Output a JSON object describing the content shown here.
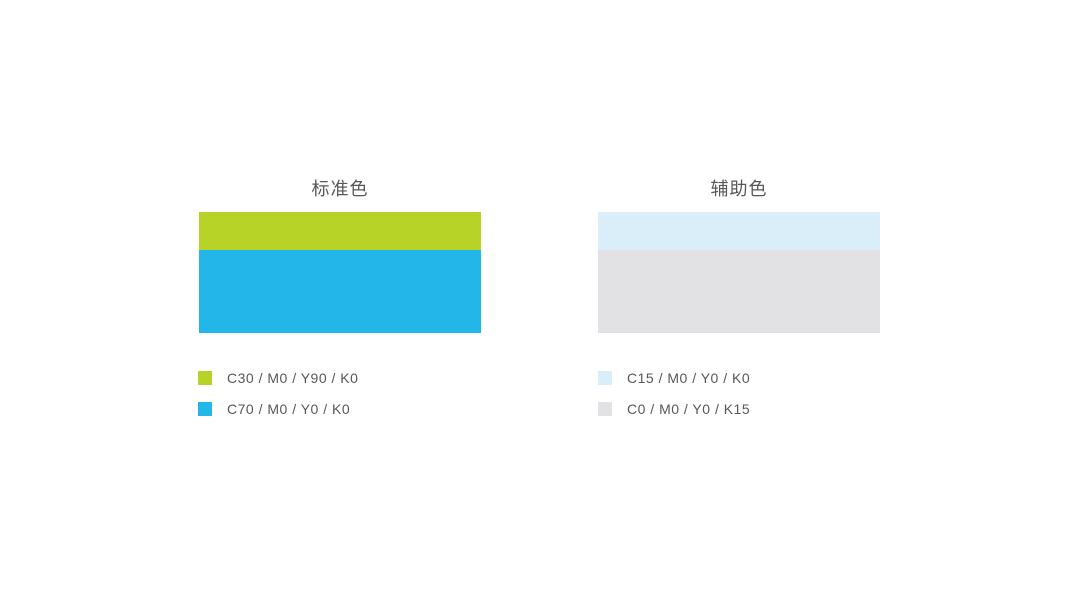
{
  "page": {
    "background": "#ffffff",
    "text_color": "#595757"
  },
  "palettes": [
    {
      "title": "标准色",
      "colors": [
        {
          "name": "brand-green",
          "hex": "#b7d327",
          "cmyk": "C30 / M0 / Y90 / K0"
        },
        {
          "name": "brand-blue",
          "hex": "#22b6e9",
          "cmyk": "C70 / M0 / Y0 / K0"
        }
      ]
    },
    {
      "title": "辅助色",
      "colors": [
        {
          "name": "light-blue",
          "hex": "#daeefa",
          "cmyk": "C15 / M0 / Y0 / K0"
        },
        {
          "name": "light-gray",
          "hex": "#e2e2e4",
          "cmyk": "C0 / M0 / Y0 / K15"
        }
      ]
    }
  ]
}
